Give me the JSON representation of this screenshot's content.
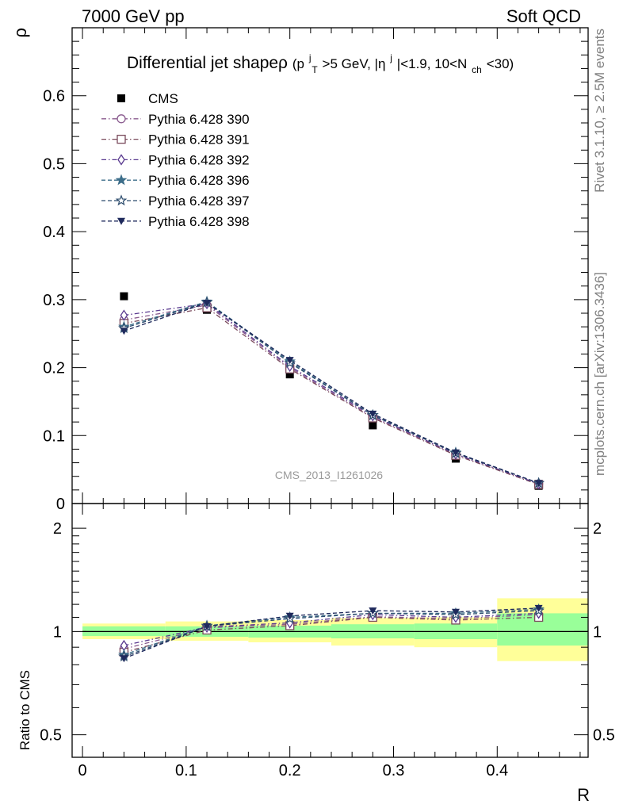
{
  "header": {
    "left": "7000 GeV pp",
    "right": "Soft QCD"
  },
  "side_texts": {
    "rivet": "Rivet 3.1.10, ≥ 2.5M events",
    "mcplots": "mcplots.cern.ch [arXiv:1306.3436]"
  },
  "title": {
    "main": "Differential jet shapeρ",
    "p": "(p",
    "pT_sup": "j",
    "pT_sub": "T",
    "mid": ">5 GeV, |η",
    "eta_sup": "j",
    "mid2": "|<1.9, 10<N",
    "nch_sub": "ch",
    "end": "<30)"
  },
  "watermark": "CMS_2013_I1261026",
  "chart_data": [
    {
      "type": "scatter",
      "panel": "main",
      "ylabel": "ρ",
      "xlabel": "",
      "ylim": [
        0,
        0.7
      ],
      "yticks": [
        0,
        0.1,
        0.2,
        0.3,
        0.4,
        0.5,
        0.6
      ],
      "ytick_labels": [
        "0",
        "0.1",
        "0.2",
        "0.3",
        "0.4",
        "0.5",
        "0.6"
      ],
      "xlim": [
        -0.01,
        0.4877
      ],
      "legend_position": "top-left",
      "x": [
        0.04,
        0.12,
        0.2,
        0.28,
        0.36,
        0.44
      ],
      "series": [
        {
          "name": "CMS",
          "color": "#000000",
          "marker": "square-filled",
          "values": [
            0.305,
            0.285,
            0.19,
            0.115,
            0.066,
            0.026
          ]
        },
        {
          "name": "Pythia 6.428 390",
          "color": "#8a5b8f",
          "marker": "circle-open",
          "dash": "dashdot",
          "values": [
            0.27,
            0.292,
            0.2,
            0.127,
            0.072,
            0.029
          ]
        },
        {
          "name": "Pythia 6.428 391",
          "color": "#7a4a5c",
          "marker": "square-open",
          "dash": "dashdot",
          "values": [
            0.265,
            0.288,
            0.198,
            0.126,
            0.071,
            0.028
          ]
        },
        {
          "name": "Pythia 6.428 392",
          "color": "#5a3a8f",
          "marker": "diamond-open",
          "dash": "dashdot",
          "values": [
            0.277,
            0.294,
            0.202,
            0.129,
            0.073,
            0.029
          ]
        },
        {
          "name": "Pythia 6.428 396",
          "color": "#3d6e8a",
          "marker": "star-filled",
          "dash": "dashed",
          "values": [
            0.26,
            0.297,
            0.209,
            0.13,
            0.075,
            0.03
          ]
        },
        {
          "name": "Pythia 6.428 397",
          "color": "#2e4d6e",
          "marker": "star-open",
          "dash": "dashed",
          "values": [
            0.258,
            0.296,
            0.207,
            0.13,
            0.074,
            0.03
          ]
        },
        {
          "name": "Pythia 6.428 398",
          "color": "#1f2a5c",
          "marker": "triangle-down-filled",
          "dash": "dashed",
          "values": [
            0.254,
            0.295,
            0.211,
            0.132,
            0.075,
            0.03
          ]
        }
      ]
    },
    {
      "type": "scatter",
      "panel": "ratio",
      "ylabel": "Ratio to CMS",
      "xlabel": "R",
      "ylim": [
        0.43,
        2.36
      ],
      "log_y": true,
      "yticks": [
        0.5,
        1,
        2
      ],
      "ytick_labels": [
        "0.5",
        "1",
        "2"
      ],
      "xlim": [
        -0.01,
        0.4877
      ],
      "xticks": [
        0,
        0.1,
        0.2,
        0.3,
        0.4
      ],
      "xtick_labels": [
        "0",
        "0.1",
        "0.2",
        "0.3",
        "0.4"
      ],
      "x": [
        0.04,
        0.12,
        0.2,
        0.28,
        0.36,
        0.44
      ],
      "bands": [
        {
          "x0": 0.0,
          "x1": 0.08,
          "yellow": [
            0.95,
            1.055
          ],
          "green": [
            0.97,
            1.035
          ]
        },
        {
          "x0": 0.08,
          "x1": 0.16,
          "yellow": [
            0.94,
            1.07
          ],
          "green": [
            0.965,
            1.035
          ]
        },
        {
          "x0": 0.16,
          "x1": 0.24,
          "yellow": [
            0.93,
            1.08
          ],
          "green": [
            0.96,
            1.04
          ]
        },
        {
          "x0": 0.24,
          "x1": 0.32,
          "yellow": [
            0.91,
            1.095
          ],
          "green": [
            0.955,
            1.05
          ]
        },
        {
          "x0": 0.32,
          "x1": 0.4,
          "yellow": [
            0.9,
            1.1
          ],
          "green": [
            0.95,
            1.055
          ]
        },
        {
          "x0": 0.4,
          "x1": 0.4877,
          "yellow": [
            0.82,
            1.25
          ],
          "green": [
            0.91,
            1.13
          ]
        }
      ],
      "series": [
        {
          "name": "Pythia 6.428 390",
          "values": [
            0.89,
            1.025,
            1.05,
            1.105,
            1.09,
            1.12
          ]
        },
        {
          "name": "Pythia 6.428 391",
          "values": [
            0.87,
            1.01,
            1.04,
            1.1,
            1.08,
            1.1
          ]
        },
        {
          "name": "Pythia 6.428 392",
          "values": [
            0.91,
            1.03,
            1.06,
            1.12,
            1.1,
            1.13
          ]
        },
        {
          "name": "Pythia 6.428 396",
          "values": [
            0.855,
            1.04,
            1.1,
            1.13,
            1.13,
            1.16
          ]
        },
        {
          "name": "Pythia 6.428 397",
          "values": [
            0.845,
            1.035,
            1.09,
            1.13,
            1.12,
            1.15
          ]
        },
        {
          "name": "Pythia 6.428 398",
          "values": [
            0.835,
            1.035,
            1.11,
            1.15,
            1.14,
            1.17
          ]
        }
      ]
    }
  ]
}
